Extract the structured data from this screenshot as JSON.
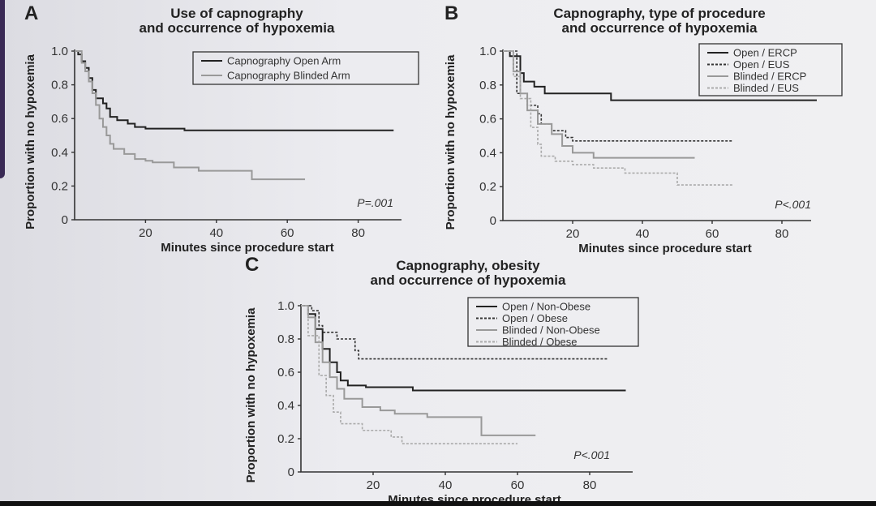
{
  "chart_data": [
    {
      "type": "line",
      "panel": "A",
      "title": [
        "Use of capnography",
        "and occurrence of hypoxemia"
      ],
      "xlabel": "Minutes since procedure start",
      "ylabel": "Proportion with no hypoxemia",
      "xlim": [
        0,
        90
      ],
      "ylim": [
        0,
        1
      ],
      "xticks": [
        "20",
        "40",
        "60",
        "80"
      ],
      "yticks": [
        "0",
        "0.2",
        "0.4",
        "0.6",
        "0.8",
        "1.0"
      ],
      "annotation": "P=.001",
      "legend": "top-right",
      "series": [
        {
          "name": "Capnography Open Arm",
          "color": "#222222",
          "dash": "solid",
          "end": 90,
          "steps": [
            [
              0,
              1
            ],
            [
              1,
              0.98
            ],
            [
              2,
              0.94
            ],
            [
              3,
              0.9
            ],
            [
              4,
              0.84
            ],
            [
              5,
              0.77
            ],
            [
              6,
              0.72
            ],
            [
              8,
              0.69
            ],
            [
              9,
              0.66
            ],
            [
              10,
              0.61
            ],
            [
              12,
              0.59
            ],
            [
              15,
              0.57
            ],
            [
              17,
              0.55
            ],
            [
              20,
              0.54
            ],
            [
              31,
              0.53
            ]
          ]
        },
        {
          "name": "Capnography Blinded Arm",
          "color": "#999999",
          "dash": "solid",
          "end": 65,
          "steps": [
            [
              0,
              1
            ],
            [
              2,
              0.93
            ],
            [
              3,
              0.88
            ],
            [
              4,
              0.82
            ],
            [
              5,
              0.75
            ],
            [
              6,
              0.68
            ],
            [
              7,
              0.6
            ],
            [
              8,
              0.55
            ],
            [
              9,
              0.5
            ],
            [
              10,
              0.45
            ],
            [
              11,
              0.42
            ],
            [
              14,
              0.39
            ],
            [
              17,
              0.36
            ],
            [
              20,
              0.35
            ],
            [
              22,
              0.34
            ],
            [
              28,
              0.31
            ],
            [
              35,
              0.29
            ],
            [
              50,
              0.24
            ]
          ]
        }
      ]
    },
    {
      "type": "line",
      "panel": "B",
      "title": [
        "Capnography, type of procedure",
        "and occurrence of hypoxemia"
      ],
      "xlabel": "Minutes since procedure start",
      "ylabel": "Proportion with no hypoxemia",
      "xlim": [
        0,
        90
      ],
      "ylim": [
        0,
        1
      ],
      "xticks": [
        "20",
        "40",
        "60",
        "80"
      ],
      "yticks": [
        "0",
        "0.2",
        "0.4",
        "0.6",
        "0.8",
        "1.0"
      ],
      "annotation": "P<.001",
      "legend": "top-right",
      "series": [
        {
          "name": "Open / ERCP",
          "color": "#222222",
          "dash": "solid",
          "end": 90,
          "steps": [
            [
              0,
              1
            ],
            [
              2,
              0.97
            ],
            [
              5,
              0.87
            ],
            [
              6,
              0.82
            ],
            [
              9,
              0.79
            ],
            [
              12,
              0.75
            ],
            [
              31,
              0.71
            ]
          ]
        },
        {
          "name": "Open / EUS",
          "color": "#333333",
          "dash": "dotted",
          "end": 66,
          "steps": [
            [
              0,
              1
            ],
            [
              4,
              0.75
            ],
            [
              7,
              0.68
            ],
            [
              10,
              0.63
            ],
            [
              11,
              0.57
            ],
            [
              14,
              0.53
            ],
            [
              18,
              0.49
            ],
            [
              20,
              0.47
            ]
          ]
        },
        {
          "name": "Blinded / ERCP",
          "color": "#999999",
          "dash": "solid",
          "end": 55,
          "steps": [
            [
              0,
              1
            ],
            [
              3,
              0.88
            ],
            [
              5,
              0.75
            ],
            [
              7,
              0.65
            ],
            [
              10,
              0.57
            ],
            [
              14,
              0.51
            ],
            [
              17,
              0.44
            ],
            [
              20,
              0.4
            ],
            [
              26,
              0.37
            ]
          ]
        },
        {
          "name": "Blinded / EUS",
          "color": "#aaaaaa",
          "dash": "dotted",
          "end": 66,
          "steps": [
            [
              0,
              1
            ],
            [
              3,
              0.85
            ],
            [
              5,
              0.72
            ],
            [
              8,
              0.55
            ],
            [
              10,
              0.45
            ],
            [
              11,
              0.38
            ],
            [
              15,
              0.35
            ],
            [
              20,
              0.33
            ],
            [
              26,
              0.31
            ],
            [
              35,
              0.28
            ],
            [
              50,
              0.21
            ]
          ]
        }
      ]
    },
    {
      "type": "line",
      "panel": "C",
      "title": [
        "Capnography, obesity",
        "and occurrence of hypoxemia"
      ],
      "xlabel": "Minutes since procedure start",
      "ylabel": "Proportion with no hypoxemia",
      "xlim": [
        0,
        90
      ],
      "ylim": [
        0,
        1
      ],
      "xticks": [
        "20",
        "40",
        "60",
        "80"
      ],
      "yticks": [
        "0",
        "0.2",
        "0.4",
        "0.6",
        "0.8",
        "1.0"
      ],
      "annotation": "P<.001",
      "legend": "top-right",
      "series": [
        {
          "name": "Open / Non-Obese",
          "color": "#222222",
          "dash": "solid",
          "end": 90,
          "steps": [
            [
              0,
              1
            ],
            [
              2,
              0.95
            ],
            [
              4,
              0.86
            ],
            [
              6,
              0.74
            ],
            [
              8,
              0.66
            ],
            [
              10,
              0.6
            ],
            [
              11,
              0.55
            ],
            [
              13,
              0.52
            ],
            [
              18,
              0.51
            ],
            [
              31,
              0.49
            ]
          ]
        },
        {
          "name": "Open / Obese",
          "color": "#333333",
          "dash": "dotted",
          "end": 85,
          "steps": [
            [
              0,
              1
            ],
            [
              3,
              0.97
            ],
            [
              5,
              0.88
            ],
            [
              6,
              0.84
            ],
            [
              10,
              0.8
            ],
            [
              15,
              0.73
            ],
            [
              16,
              0.68
            ]
          ]
        },
        {
          "name": "Blinded / Non-Obese",
          "color": "#999999",
          "dash": "solid",
          "end": 65,
          "steps": [
            [
              0,
              1
            ],
            [
              2,
              0.93
            ],
            [
              4,
              0.78
            ],
            [
              6,
              0.66
            ],
            [
              8,
              0.57
            ],
            [
              10,
              0.5
            ],
            [
              12,
              0.44
            ],
            [
              17,
              0.39
            ],
            [
              22,
              0.37
            ],
            [
              26,
              0.35
            ],
            [
              35,
              0.33
            ],
            [
              50,
              0.22
            ]
          ]
        },
        {
          "name": "Blinded / Obese",
          "color": "#aaaaaa",
          "dash": "dotted",
          "end": 60,
          "steps": [
            [
              0,
              1
            ],
            [
              2,
              0.82
            ],
            [
              5,
              0.58
            ],
            [
              7,
              0.46
            ],
            [
              9,
              0.36
            ],
            [
              11,
              0.29
            ],
            [
              17,
              0.25
            ],
            [
              25,
              0.21
            ],
            [
              28,
              0.17
            ]
          ]
        }
      ]
    }
  ]
}
